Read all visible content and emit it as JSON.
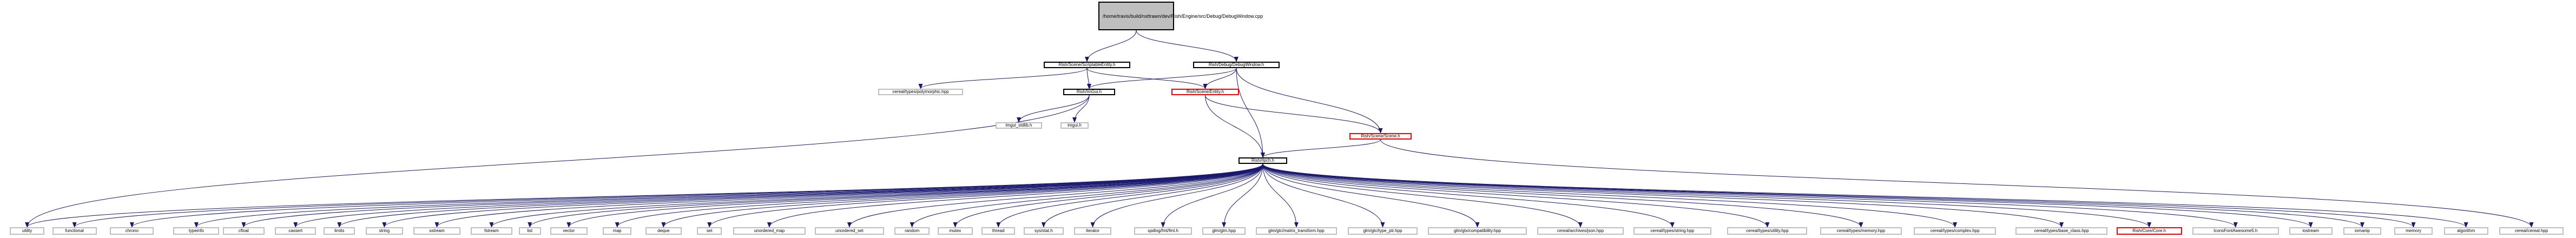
{
  "graph": {
    "nodes": [
      {
        "id": "root",
        "label": "/home/travis/build/nxttrawn/dev/Rish/Engine/src/Debug/DebugWindow.cpp",
        "style": "root"
      },
      {
        "id": "scriptable",
        "label": "Rish/Scene/ScriptableEntity.h",
        "style": "black"
      },
      {
        "id": "debugwindow",
        "label": "Rish/Debug/DebugWindow.h",
        "style": "black"
      },
      {
        "id": "polymorphic",
        "label": "cereal/types/polymorphic.hpp",
        "style": "plain"
      },
      {
        "id": "imgui_rish",
        "label": "Rish/ImGui.h",
        "style": "black"
      },
      {
        "id": "entity",
        "label": "Rish/Scene/Entity.h",
        "style": "red"
      },
      {
        "id": "scene",
        "label": "Rish/Scene/Scene.h",
        "style": "red"
      },
      {
        "id": "imgui_stdlib",
        "label": "imgui_stdlib.h",
        "style": "plain"
      },
      {
        "id": "imgui",
        "label": "imgui.h",
        "style": "plain"
      },
      {
        "id": "rishpch",
        "label": "Rish/rlpch.h",
        "style": "black"
      },
      {
        "id": "utility",
        "label": "utility",
        "style": "plain"
      },
      {
        "id": "functional",
        "label": "functional",
        "style": "plain"
      },
      {
        "id": "chrono",
        "label": "chrono",
        "style": "plain"
      },
      {
        "id": "typeinfo",
        "label": "typeinfo",
        "style": "plain"
      },
      {
        "id": "cfloat",
        "label": "cfloat",
        "style": "plain"
      },
      {
        "id": "cassert",
        "label": "cassert",
        "style": "plain"
      },
      {
        "id": "limits",
        "label": "limits",
        "style": "plain"
      },
      {
        "id": "string",
        "label": "string",
        "style": "plain"
      },
      {
        "id": "sstream",
        "label": "sstream",
        "style": "plain"
      },
      {
        "id": "fstream",
        "label": "fstream",
        "style": "plain"
      },
      {
        "id": "list",
        "label": "list",
        "style": "plain"
      },
      {
        "id": "vector",
        "label": "vector",
        "style": "plain"
      },
      {
        "id": "map",
        "label": "map",
        "style": "plain"
      },
      {
        "id": "deque",
        "label": "deque",
        "style": "plain"
      },
      {
        "id": "set",
        "label": "set",
        "style": "plain"
      },
      {
        "id": "unordered_map",
        "label": "unordered_map",
        "style": "plain"
      },
      {
        "id": "unordered_set",
        "label": "unordered_set",
        "style": "plain"
      },
      {
        "id": "random",
        "label": "random",
        "style": "plain"
      },
      {
        "id": "mutex",
        "label": "mutex",
        "style": "plain"
      },
      {
        "id": "thread",
        "label": "thread",
        "style": "plain"
      },
      {
        "id": "sysstat",
        "label": "sys/stat.h",
        "style": "plain"
      },
      {
        "id": "iterator",
        "label": "iterator",
        "style": "plain"
      },
      {
        "id": "spdlog",
        "label": "spdlog/fmt/fmt.h",
        "style": "plain"
      },
      {
        "id": "glm",
        "label": "glm/glm.hpp",
        "style": "plain"
      },
      {
        "id": "glm_mt",
        "label": "glm/gtc/matrix_transform.hpp",
        "style": "plain"
      },
      {
        "id": "glm_tp",
        "label": "glm/gtc/type_ptr.hpp",
        "style": "plain"
      },
      {
        "id": "glm_compat",
        "label": "glm/gtx/compatibility.hpp",
        "style": "plain"
      },
      {
        "id": "cereal_json",
        "label": "cereal/archives/json.hpp",
        "style": "plain"
      },
      {
        "id": "cereal_string",
        "label": "cereal/types/string.hpp",
        "style": "plain"
      },
      {
        "id": "cereal_utility",
        "label": "cereal/types/utility.hpp",
        "style": "plain"
      },
      {
        "id": "cereal_memory",
        "label": "cereal/types/memory.hpp",
        "style": "plain"
      },
      {
        "id": "cereal_complex",
        "label": "cereal/types/complex.hpp",
        "style": "plain"
      },
      {
        "id": "cereal_base",
        "label": "cereal/types/base_class.hpp",
        "style": "plain"
      },
      {
        "id": "core",
        "label": "Rish/Core/Core.h",
        "style": "red"
      },
      {
        "id": "iconfont",
        "label": "IconsFontAwesome5.h",
        "style": "plain"
      },
      {
        "id": "iostream",
        "label": "iostream",
        "style": "plain"
      },
      {
        "id": "iomanip",
        "label": "iomanip",
        "style": "plain"
      },
      {
        "id": "memory",
        "label": "memory",
        "style": "plain"
      },
      {
        "id": "algorithm",
        "label": "algorithm",
        "style": "plain"
      },
      {
        "id": "cereal",
        "label": "cereal/cereal.hpp",
        "style": "plain"
      }
    ],
    "edges": [
      [
        "root",
        "scriptable"
      ],
      [
        "root",
        "debugwindow"
      ],
      [
        "scriptable",
        "polymorphic"
      ],
      [
        "scriptable",
        "imgui_rish"
      ],
      [
        "scriptable",
        "entity"
      ],
      [
        "debugwindow",
        "imgui_rish"
      ],
      [
        "debugwindow",
        "entity"
      ],
      [
        "debugwindow",
        "scene"
      ],
      [
        "debugwindow",
        "rishpch"
      ],
      [
        "imgui_rish",
        "imgui_stdlib"
      ],
      [
        "imgui_rish",
        "imgui"
      ],
      [
        "imgui_rish",
        "utility"
      ],
      [
        "entity",
        "rishpch"
      ],
      [
        "entity",
        "scene"
      ],
      [
        "scene",
        "rishpch"
      ],
      [
        "scene",
        "cereal"
      ],
      [
        "rishpch",
        "utility"
      ],
      [
        "rishpch",
        "functional"
      ],
      [
        "rishpch",
        "chrono"
      ],
      [
        "rishpch",
        "typeinfo"
      ],
      [
        "rishpch",
        "cfloat"
      ],
      [
        "rishpch",
        "cassert"
      ],
      [
        "rishpch",
        "limits"
      ],
      [
        "rishpch",
        "string"
      ],
      [
        "rishpch",
        "sstream"
      ],
      [
        "rishpch",
        "fstream"
      ],
      [
        "rishpch",
        "list"
      ],
      [
        "rishpch",
        "vector"
      ],
      [
        "rishpch",
        "map"
      ],
      [
        "rishpch",
        "deque"
      ],
      [
        "rishpch",
        "set"
      ],
      [
        "rishpch",
        "unordered_map"
      ],
      [
        "rishpch",
        "unordered_set"
      ],
      [
        "rishpch",
        "random"
      ],
      [
        "rishpch",
        "mutex"
      ],
      [
        "rishpch",
        "thread"
      ],
      [
        "rishpch",
        "sysstat"
      ],
      [
        "rishpch",
        "iterator"
      ],
      [
        "rishpch",
        "spdlog"
      ],
      [
        "rishpch",
        "glm"
      ],
      [
        "rishpch",
        "glm_mt"
      ],
      [
        "rishpch",
        "glm_tp"
      ],
      [
        "rishpch",
        "glm_compat"
      ],
      [
        "rishpch",
        "cereal_json"
      ],
      [
        "rishpch",
        "cereal_string"
      ],
      [
        "rishpch",
        "cereal_utility"
      ],
      [
        "rishpch",
        "cereal_memory"
      ],
      [
        "rishpch",
        "cereal_complex"
      ],
      [
        "rishpch",
        "cereal_base"
      ],
      [
        "rishpch",
        "core"
      ],
      [
        "rishpch",
        "iconfont"
      ],
      [
        "rishpch",
        "iostream"
      ],
      [
        "rishpch",
        "iomanip"
      ],
      [
        "rishpch",
        "memory"
      ],
      [
        "rishpch",
        "algorithm"
      ]
    ]
  },
  "colors": {
    "edge": "#191970",
    "root_fill": "#bfbfbf",
    "plain_border": "#bfbfbf",
    "red_border": "#ff0000"
  }
}
